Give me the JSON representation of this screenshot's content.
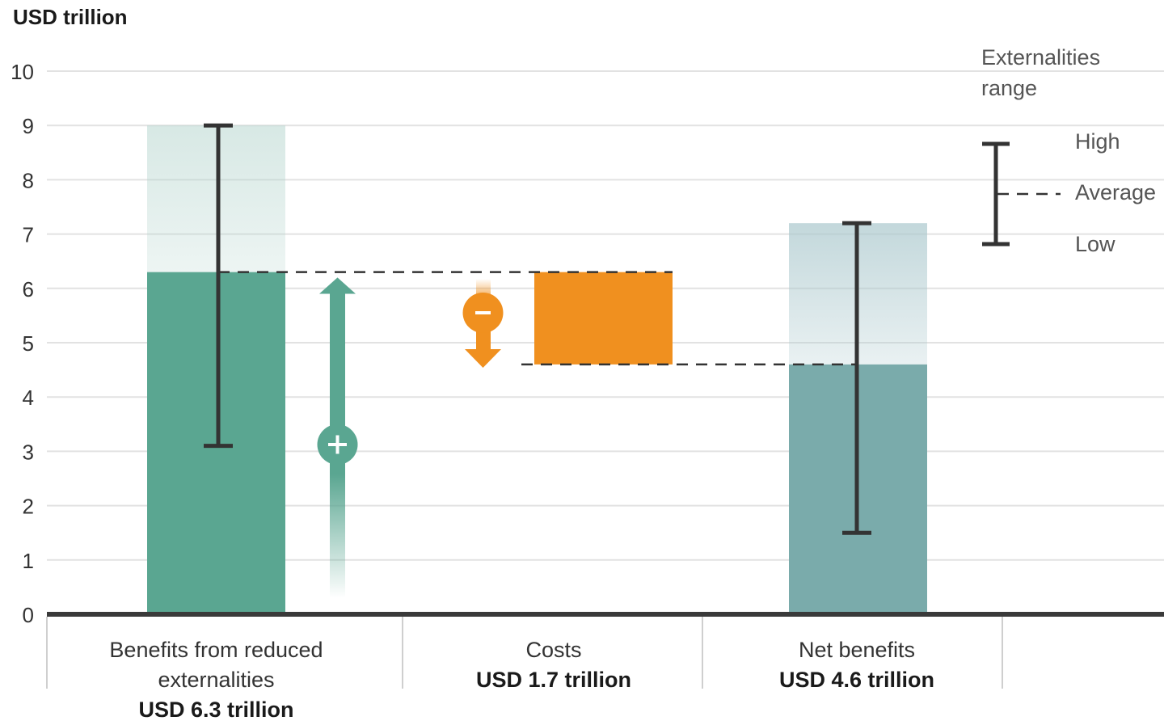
{
  "chart_data": {
    "type": "bar",
    "ylabel": "USD trillion",
    "ylim": [
      0,
      10
    ],
    "yticks": [
      "0",
      "1",
      "2",
      "3",
      "4",
      "5",
      "6",
      "7",
      "8",
      "9",
      "10"
    ],
    "grid": true,
    "categories": [
      {
        "name": "Benefits from reduced externalities",
        "value_label": "USD 6.3 trillion"
      },
      {
        "name": "Costs",
        "value_label": "USD 1.7 trillion"
      },
      {
        "name": "Net benefits",
        "value_label": "USD 4.6 trillion"
      }
    ],
    "bars": [
      {
        "category": "Benefits from reduced externalities",
        "base": 0,
        "value": 6.3,
        "range_low": 3.1,
        "range_high": 9.0,
        "color": "#5aa691"
      },
      {
        "category": "Costs",
        "base": 4.6,
        "value": 6.3,
        "color": "#f0901f"
      },
      {
        "category": "Net benefits",
        "base": 0,
        "value": 4.6,
        "range_low": 1.5,
        "range_high": 7.2,
        "color": "#7aabab"
      }
    ],
    "legend": {
      "position": "top-right",
      "title": "Externalities range",
      "items": [
        "High",
        "Average",
        "Low"
      ]
    },
    "colors": {
      "benefit": "#5aa691",
      "cost": "#f0901f",
      "net": "#7aabab",
      "error_bar": "#333333",
      "axis": "#3a3a3a",
      "grid": "#e2e2e2"
    }
  }
}
